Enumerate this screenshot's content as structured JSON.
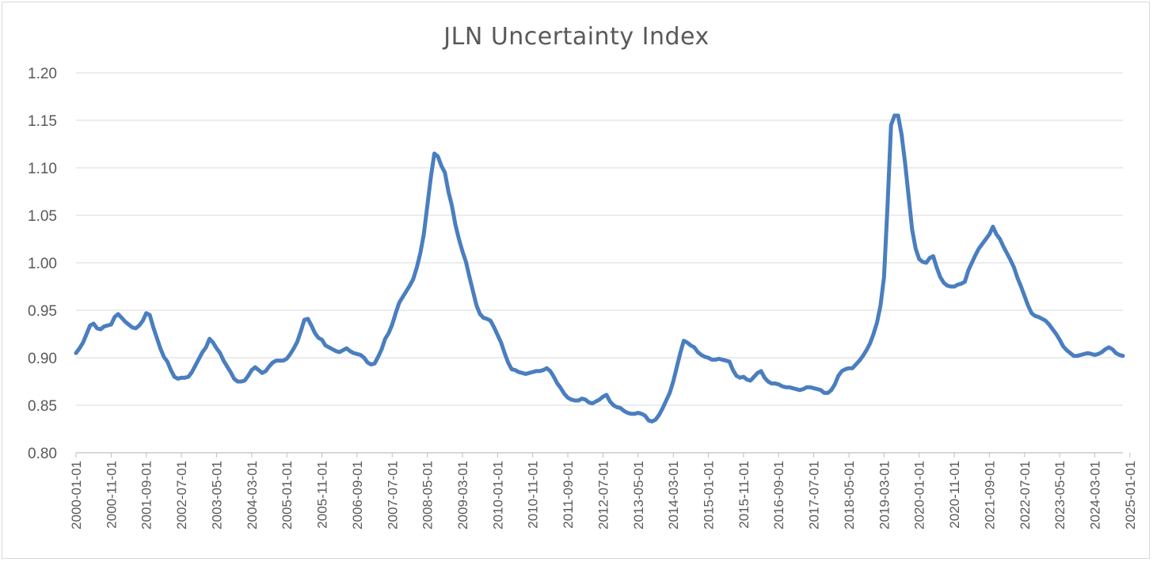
{
  "chart_data": {
    "type": "line",
    "title": "JLN Uncertainty Index",
    "xlabel": "",
    "ylabel": "",
    "ylim": [
      0.8,
      1.2
    ],
    "yticks": [
      "0.80",
      "0.85",
      "0.90",
      "0.95",
      "1.00",
      "1.05",
      "1.10",
      "1.15",
      "1.20"
    ],
    "xtick_labels": [
      "2000-01-01",
      "2000-11-01",
      "2001-09-01",
      "2002-07-01",
      "2003-05-01",
      "2004-03-01",
      "2005-01-01",
      "2005-11-01",
      "2006-09-01",
      "2007-07-01",
      "2008-05-01",
      "2009-03-01",
      "2010-01-01",
      "2010-11-01",
      "2011-09-01",
      "2012-07-01",
      "2013-05-01",
      "2014-03-01",
      "2015-01-01",
      "2015-11-01",
      "2016-09-01",
      "2017-07-01",
      "2018-05-01",
      "2019-03-01",
      "2020-01-01",
      "2020-11-01",
      "2021-09-01",
      "2022-07-01",
      "2023-05-01",
      "2024-03-01",
      "2025-01-01"
    ],
    "x_start": "2000-01",
    "x_interval_months": 1,
    "series": [
      {
        "name": "JLN Uncertainty Index",
        "color": "#4a7ebf",
        "values": [
          0.905,
          0.91,
          0.916,
          0.925,
          0.934,
          0.936,
          0.931,
          0.93,
          0.933,
          0.934,
          0.935,
          0.943,
          0.946,
          0.942,
          0.938,
          0.935,
          0.932,
          0.931,
          0.934,
          0.939,
          0.947,
          0.945,
          0.932,
          0.921,
          0.91,
          0.901,
          0.896,
          0.887,
          0.88,
          0.878,
          0.879,
          0.879,
          0.88,
          0.885,
          0.892,
          0.899,
          0.906,
          0.911,
          0.92,
          0.916,
          0.91,
          0.905,
          0.897,
          0.891,
          0.885,
          0.878,
          0.875,
          0.875,
          0.876,
          0.881,
          0.887,
          0.89,
          0.887,
          0.884,
          0.886,
          0.891,
          0.895,
          0.897,
          0.897,
          0.897,
          0.899,
          0.904,
          0.91,
          0.917,
          0.928,
          0.94,
          0.941,
          0.934,
          0.926,
          0.921,
          0.919,
          0.913,
          0.911,
          0.909,
          0.907,
          0.906,
          0.908,
          0.91,
          0.907,
          0.905,
          0.904,
          0.903,
          0.9,
          0.895,
          0.893,
          0.894,
          0.901,
          0.909,
          0.92,
          0.926,
          0.935,
          0.947,
          0.958,
          0.964,
          0.97,
          0.976,
          0.983,
          0.995,
          1.01,
          1.03,
          1.06,
          1.09,
          1.115,
          1.112,
          1.102,
          1.095,
          1.075,
          1.06,
          1.04,
          1.025,
          1.012,
          1.001,
          0.985,
          0.97,
          0.955,
          0.946,
          0.942,
          0.941,
          0.939,
          0.932,
          0.924,
          0.916,
          0.905,
          0.895,
          0.888,
          0.887,
          0.885,
          0.884,
          0.883,
          0.884,
          0.885,
          0.886,
          0.886,
          0.887,
          0.889,
          0.886,
          0.88,
          0.873,
          0.868,
          0.862,
          0.858,
          0.856,
          0.855,
          0.855,
          0.857,
          0.856,
          0.853,
          0.852,
          0.854,
          0.856,
          0.859,
          0.861,
          0.854,
          0.85,
          0.848,
          0.847,
          0.844,
          0.842,
          0.841,
          0.841,
          0.842,
          0.841,
          0.839,
          0.834,
          0.833,
          0.835,
          0.84,
          0.847,
          0.855,
          0.863,
          0.875,
          0.89,
          0.905,
          0.918,
          0.916,
          0.913,
          0.911,
          0.906,
          0.903,
          0.901,
          0.9,
          0.898,
          0.898,
          0.899,
          0.898,
          0.897,
          0.896,
          0.887,
          0.881,
          0.879,
          0.88,
          0.877,
          0.876,
          0.88,
          0.884,
          0.886,
          0.879,
          0.875,
          0.873,
          0.873,
          0.872,
          0.87,
          0.869,
          0.869,
          0.868,
          0.867,
          0.866,
          0.867,
          0.869,
          0.869,
          0.868,
          0.867,
          0.866,
          0.863,
          0.863,
          0.866,
          0.872,
          0.881,
          0.886,
          0.888,
          0.889,
          0.889,
          0.893,
          0.897,
          0.902,
          0.908,
          0.915,
          0.925,
          0.937,
          0.955,
          0.985,
          1.06,
          1.145,
          1.155,
          1.155,
          1.135,
          1.105,
          1.07,
          1.035,
          1.015,
          1.004,
          1.001,
          1.0,
          1.005,
          1.007,
          0.995,
          0.985,
          0.979,
          0.976,
          0.975,
          0.975,
          0.977,
          0.978,
          0.98,
          0.992,
          1.0,
          1.008,
          1.015,
          1.02,
          1.025,
          1.03,
          1.038,
          1.03,
          1.025,
          1.017,
          1.01,
          1.003,
          0.995,
          0.984,
          0.975,
          0.965,
          0.955,
          0.947,
          0.944,
          0.943,
          0.941,
          0.939,
          0.935,
          0.93,
          0.925,
          0.919,
          0.912,
          0.908,
          0.905,
          0.902,
          0.902,
          0.903,
          0.904,
          0.905,
          0.904,
          0.903,
          0.904,
          0.906,
          0.909,
          0.911,
          0.909,
          0.905,
          0.903,
          0.902
        ]
      }
    ]
  }
}
